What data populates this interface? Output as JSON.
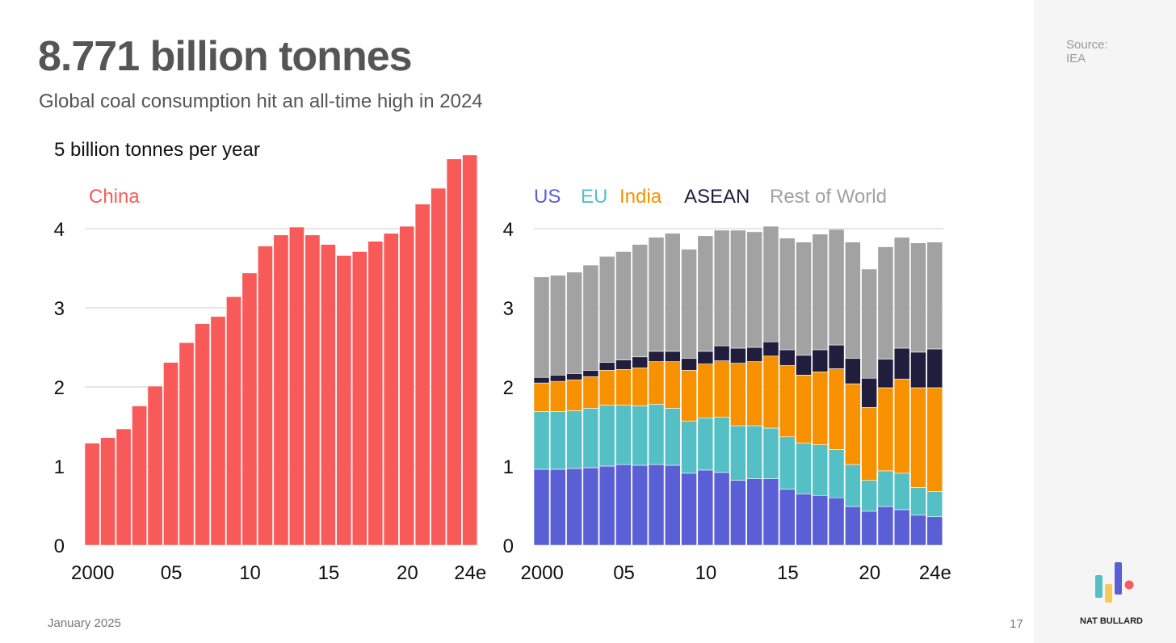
{
  "header": {
    "title": "8.771 billion tonnes",
    "subtitle": "Global coal consumption hit an all-time high in 2024",
    "source": "Source:\nIEA"
  },
  "footer": {
    "date": "January 2025",
    "page_number": "17",
    "brand": "NAT BULLARD"
  },
  "colors": {
    "China": "#f85a59",
    "US": "#5a5fd6",
    "EU": "#55bfc6",
    "India": "#f79100",
    "ASEAN": "#211d3d",
    "Rest of World": "#a2a2a2",
    "grid": "#cccccc"
  },
  "chart_data": [
    {
      "type": "bar",
      "title": "China",
      "ylabel": "5 billion tonnes per year",
      "ylim": [
        0,
        5
      ],
      "yticks": [
        "0",
        "1",
        "2",
        "3",
        "4"
      ],
      "x": [
        2000,
        2001,
        2002,
        2003,
        2004,
        2005,
        2006,
        2007,
        2008,
        2009,
        2010,
        2011,
        2012,
        2013,
        2014,
        2015,
        2016,
        2017,
        2018,
        2019,
        2020,
        2021,
        2022,
        2023,
        2024
      ],
      "xtick_labels": [
        {
          "year": 2000,
          "label": "2000"
        },
        {
          "year": 2005,
          "label": "05"
        },
        {
          "year": 2010,
          "label": "10"
        },
        {
          "year": 2015,
          "label": "15"
        },
        {
          "year": 2020,
          "label": "20"
        },
        {
          "year": 2024,
          "label": "24e"
        }
      ],
      "series": [
        {
          "name": "China",
          "values": [
            1.29,
            1.36,
            1.47,
            1.76,
            2.01,
            2.31,
            2.56,
            2.8,
            2.89,
            3.14,
            3.44,
            3.78,
            3.92,
            4.02,
            3.92,
            3.8,
            3.66,
            3.71,
            3.84,
            3.94,
            4.03,
            4.31,
            4.51,
            4.88,
            4.93
          ]
        }
      ]
    },
    {
      "type": "bar",
      "stacked": true,
      "ylim": [
        0,
        5
      ],
      "yticks": [
        "0",
        "1",
        "2",
        "3",
        "4"
      ],
      "x": [
        2000,
        2001,
        2002,
        2003,
        2004,
        2005,
        2006,
        2007,
        2008,
        2009,
        2010,
        2011,
        2012,
        2013,
        2014,
        2015,
        2016,
        2017,
        2018,
        2019,
        2020,
        2021,
        2022,
        2023,
        2024
      ],
      "xtick_labels": [
        {
          "year": 2000,
          "label": "2000"
        },
        {
          "year": 2005,
          "label": "05"
        },
        {
          "year": 2010,
          "label": "10"
        },
        {
          "year": 2015,
          "label": "15"
        },
        {
          "year": 2020,
          "label": "20"
        },
        {
          "year": 2024,
          "label": "24e"
        }
      ],
      "series": [
        {
          "name": "US",
          "values": [
            0.96,
            0.96,
            0.97,
            0.98,
            1.0,
            1.02,
            1.01,
            1.02,
            1.01,
            0.91,
            0.95,
            0.92,
            0.82,
            0.84,
            0.84,
            0.71,
            0.65,
            0.63,
            0.6,
            0.49,
            0.43,
            0.49,
            0.45,
            0.38,
            0.36
          ]
        },
        {
          "name": "EU",
          "values": [
            0.73,
            0.73,
            0.73,
            0.75,
            0.77,
            0.75,
            0.75,
            0.76,
            0.72,
            0.66,
            0.66,
            0.7,
            0.69,
            0.67,
            0.64,
            0.66,
            0.64,
            0.64,
            0.61,
            0.53,
            0.39,
            0.45,
            0.46,
            0.35,
            0.32
          ]
        },
        {
          "name": "India",
          "values": [
            0.36,
            0.38,
            0.39,
            0.4,
            0.44,
            0.45,
            0.48,
            0.54,
            0.59,
            0.64,
            0.68,
            0.71,
            0.79,
            0.81,
            0.91,
            0.9,
            0.86,
            0.92,
            1.02,
            1.02,
            0.92,
            1.05,
            1.19,
            1.26,
            1.31
          ]
        },
        {
          "name": "ASEAN",
          "values": [
            0.07,
            0.08,
            0.08,
            0.08,
            0.1,
            0.12,
            0.14,
            0.13,
            0.13,
            0.15,
            0.16,
            0.19,
            0.19,
            0.18,
            0.18,
            0.2,
            0.25,
            0.28,
            0.3,
            0.32,
            0.37,
            0.36,
            0.39,
            0.45,
            0.49
          ]
        },
        {
          "name": "Rest of World",
          "values": [
            1.27,
            1.26,
            1.28,
            1.33,
            1.34,
            1.37,
            1.42,
            1.44,
            1.49,
            1.38,
            1.46,
            1.46,
            1.49,
            1.46,
            1.46,
            1.41,
            1.43,
            1.46,
            1.46,
            1.47,
            1.38,
            1.42,
            1.4,
            1.38,
            1.35
          ]
        }
      ]
    }
  ]
}
